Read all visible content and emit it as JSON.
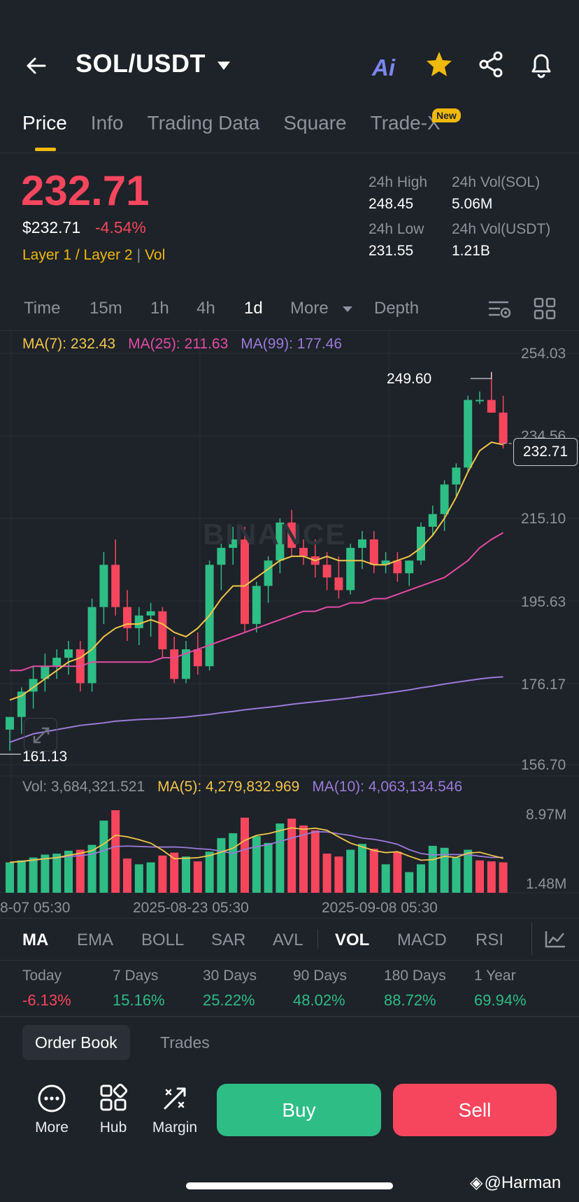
{
  "header": {
    "pair": "SOL/USDT",
    "ai_label": "Ai"
  },
  "tabs": [
    {
      "label": "Price"
    },
    {
      "label": "Info"
    },
    {
      "label": "Trading Data"
    },
    {
      "label": "Square"
    },
    {
      "label": "Trade-X"
    }
  ],
  "tab_badge": "New",
  "price": {
    "last": "232.71",
    "fiat": "$232.71",
    "change": "-4.54%",
    "tag1": "Layer 1 / Layer 2",
    "tag2": "Vol"
  },
  "stats": {
    "high_label": "24h High",
    "high_value": "248.45",
    "low_label": "24h Low",
    "low_value": "231.55",
    "vol_sol_label": "24h Vol(SOL)",
    "vol_sol_value": "5.06M",
    "vol_usdt_label": "24h Vol(USDT)",
    "vol_usdt_value": "1.21B"
  },
  "intervals": {
    "time": "Time",
    "m15": "15m",
    "h1": "1h",
    "h4": "4h",
    "d1": "1d",
    "more": "More",
    "depth": "Depth"
  },
  "chart": {
    "ma7": "MA(7): 232.43",
    "ma25": "MA(25): 211.63",
    "ma99": "MA(99): 177.46",
    "watermark": "BINANCE",
    "price_axis": [
      "254.03",
      "234.56",
      "215.10",
      "195.63",
      "176.17",
      "156.70"
    ],
    "high_marker": "249.60",
    "low_marker": "161.13",
    "last_marker": "232.71",
    "vol": "Vol: 3,684,321.521",
    "vol_ma5": "MA(5): 4,279,832.969",
    "vol_ma10": "MA(10): 4,063,134.546",
    "vol_axis_top": "8.97M",
    "vol_axis_bottom": "1.48M",
    "dates": [
      "8-07 05:30",
      "2025-08-23 05:30",
      "2025-09-08 05:30"
    ],
    "colors": {
      "up": "#2ebd85",
      "down": "#f6465d",
      "ma7": "#f0c74a",
      "ma25": "#e24ca3",
      "ma99": "#9a7bd9"
    }
  },
  "chart_data": {
    "type": "candlestick",
    "ylim": [
      156.7,
      254.03
    ],
    "candles": [
      {
        "o": 165,
        "h": 168,
        "l": 160,
        "c": 168
      },
      {
        "o": 168,
        "h": 175,
        "l": 164,
        "c": 174
      },
      {
        "o": 174,
        "h": 180,
        "l": 170,
        "c": 177
      },
      {
        "o": 177,
        "h": 183,
        "l": 174,
        "c": 180
      },
      {
        "o": 180,
        "h": 184,
        "l": 177,
        "c": 182
      },
      {
        "o": 182,
        "h": 186,
        "l": 178,
        "c": 184
      },
      {
        "o": 184,
        "h": 186,
        "l": 174,
        "c": 176
      },
      {
        "o": 176,
        "h": 196,
        "l": 174,
        "c": 194
      },
      {
        "o": 194,
        "h": 207,
        "l": 190,
        "c": 204
      },
      {
        "o": 204,
        "h": 210,
        "l": 192,
        "c": 194
      },
      {
        "o": 194,
        "h": 198,
        "l": 186,
        "c": 189
      },
      {
        "o": 189,
        "h": 194,
        "l": 185,
        "c": 192
      },
      {
        "o": 192,
        "h": 195,
        "l": 187,
        "c": 193
      },
      {
        "o": 193,
        "h": 194,
        "l": 182,
        "c": 184
      },
      {
        "o": 184,
        "h": 187,
        "l": 176,
        "c": 177
      },
      {
        "o": 177,
        "h": 186,
        "l": 176,
        "c": 184
      },
      {
        "o": 184,
        "h": 188,
        "l": 178,
        "c": 180
      },
      {
        "o": 180,
        "h": 205,
        "l": 179,
        "c": 204
      },
      {
        "o": 204,
        "h": 209,
        "l": 198,
        "c": 208
      },
      {
        "o": 208,
        "h": 213,
        "l": 204,
        "c": 210
      },
      {
        "o": 210,
        "h": 213,
        "l": 188,
        "c": 190
      },
      {
        "o": 190,
        "h": 200,
        "l": 188,
        "c": 199
      },
      {
        "o": 199,
        "h": 206,
        "l": 195,
        "c": 205
      },
      {
        "o": 205,
        "h": 215,
        "l": 202,
        "c": 214
      },
      {
        "o": 214,
        "h": 217,
        "l": 206,
        "c": 208
      },
      {
        "o": 208,
        "h": 210,
        "l": 204,
        "c": 206
      },
      {
        "o": 206,
        "h": 210,
        "l": 201,
        "c": 204
      },
      {
        "o": 204,
        "h": 207,
        "l": 198,
        "c": 201
      },
      {
        "o": 201,
        "h": 206,
        "l": 196,
        "c": 198
      },
      {
        "o": 198,
        "h": 209,
        "l": 197,
        "c": 208
      },
      {
        "o": 208,
        "h": 212,
        "l": 203,
        "c": 210
      },
      {
        "o": 210,
        "h": 212,
        "l": 202,
        "c": 204
      },
      {
        "o": 204,
        "h": 207,
        "l": 202,
        "c": 205
      },
      {
        "o": 205,
        "h": 207,
        "l": 200,
        "c": 202
      },
      {
        "o": 202,
        "h": 205,
        "l": 199,
        "c": 205
      },
      {
        "o": 205,
        "h": 214,
        "l": 204,
        "c": 213
      },
      {
        "o": 213,
        "h": 218,
        "l": 211,
        "c": 216
      },
      {
        "o": 216,
        "h": 224,
        "l": 212,
        "c": 223
      },
      {
        "o": 223,
        "h": 228,
        "l": 220,
        "c": 227
      },
      {
        "o": 227,
        "h": 244,
        "l": 226,
        "c": 243
      },
      {
        "o": 243,
        "h": 245,
        "l": 242,
        "c": 243
      },
      {
        "o": 243,
        "h": 249.6,
        "l": 240,
        "c": 240
      },
      {
        "o": 240,
        "h": 244,
        "l": 231.5,
        "c": 232.7
      }
    ],
    "ma7": [
      172,
      173,
      175,
      177,
      179,
      181,
      182,
      184,
      187,
      189,
      190,
      190,
      191,
      190,
      188,
      187,
      189,
      192,
      196,
      199,
      199,
      201,
      203,
      205,
      206,
      206,
      205,
      206,
      205,
      205,
      205,
      204,
      204,
      205,
      206,
      208,
      211,
      215,
      220,
      226,
      231,
      233,
      232.4
    ],
    "ma25": [
      179,
      179,
      180,
      180,
      180,
      180,
      180,
      181,
      181,
      181,
      181,
      181,
      181,
      182,
      182,
      183,
      184,
      185,
      186,
      187,
      188,
      189,
      190,
      191,
      192,
      193,
      193,
      194,
      194,
      195,
      195,
      196,
      196,
      197,
      198,
      199,
      200,
      201,
      203,
      205,
      208,
      210,
      211.6
    ],
    "ma99": [
      162,
      163,
      164,
      164.5,
      165,
      165.5,
      166,
      166.3,
      166.6,
      167,
      167.2,
      167.4,
      167.5,
      167.6,
      167.8,
      168,
      168.3,
      168.6,
      169,
      169.3,
      169.7,
      170,
      170.3,
      170.6,
      171,
      171.3,
      171.6,
      171.9,
      172.2,
      172.5,
      172.9,
      173.2,
      173.6,
      174,
      174.4,
      174.9,
      175.3,
      175.8,
      176.2,
      176.6,
      177,
      177.3,
      177.5
    ],
    "volume": [
      3.6,
      3.8,
      4.1,
      4.4,
      4.5,
      4.8,
      4.9,
      5.4,
      7.9,
      8.97,
      4.0,
      3.4,
      3.6,
      4.3,
      4.6,
      4.2,
      3.7,
      4.7,
      6.1,
      6.6,
      8.2,
      6.3,
      5.6,
      7.6,
      8.1,
      7.4,
      6.9,
      4.5,
      4.2,
      4.9,
      5.5,
      5.0,
      3.4,
      4.7,
      2.6,
      3.4,
      5.3,
      5.1,
      4.1,
      4.9,
      3.8,
      3.7,
      3.6
    ],
    "volume_ylim": [
      1.48,
      8.97
    ],
    "volume_up": [
      true,
      true,
      true,
      true,
      true,
      true,
      false,
      true,
      true,
      false,
      false,
      true,
      true,
      false,
      false,
      true,
      false,
      true,
      true,
      true,
      false,
      true,
      true,
      true,
      false,
      false,
      false,
      false,
      false,
      true,
      true,
      false,
      true,
      false,
      true,
      true,
      true,
      true,
      true,
      true,
      false,
      false,
      false
    ]
  },
  "indicators": [
    "MA",
    "EMA",
    "BOLL",
    "SAR",
    "AVL",
    "VOL",
    "MACD",
    "RSI"
  ],
  "performance": [
    {
      "label": "Today",
      "value": "-6.13%",
      "neg": true
    },
    {
      "label": "7 Days",
      "value": "15.16%",
      "neg": false
    },
    {
      "label": "30 Days",
      "value": "25.22%",
      "neg": false
    },
    {
      "label": "90 Days",
      "value": "48.02%",
      "neg": false
    },
    {
      "label": "180 Days",
      "value": "88.72%",
      "neg": false
    },
    {
      "label": "1 Year",
      "value": "69.94%",
      "neg": false
    }
  ],
  "bottom_tabs": {
    "order_book": "Order Book",
    "trades": "Trades"
  },
  "actions": {
    "more": "More",
    "hub": "Hub",
    "margin": "Margin",
    "buy": "Buy",
    "sell": "Sell"
  },
  "credit": "@Harman"
}
